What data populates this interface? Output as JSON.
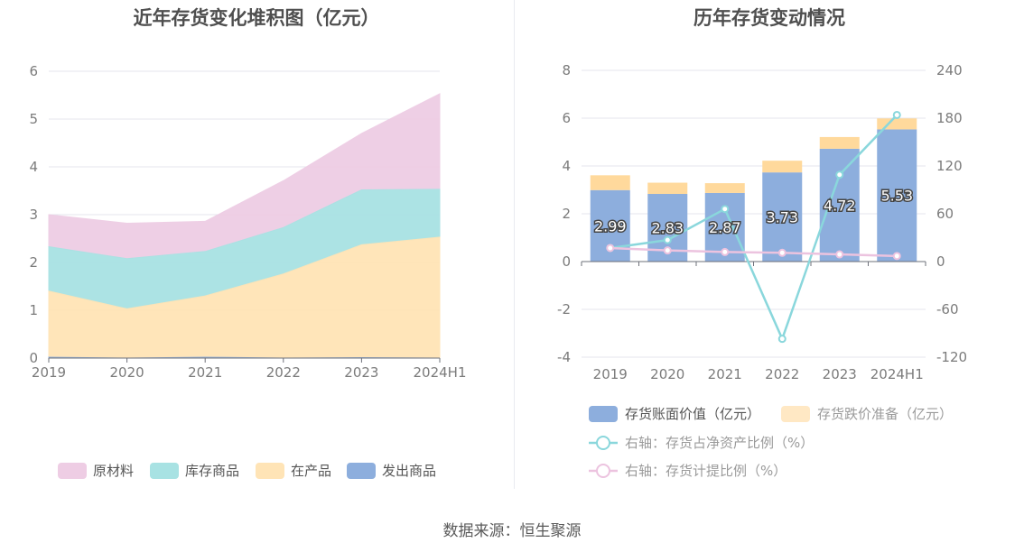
{
  "colors": {
    "raw": "#eecde4",
    "inventory": "#a8e2e3",
    "wip": "#ffe4b6",
    "shipped": "#8daedd",
    "book": "#8daedd",
    "impair": "#ffd99c",
    "netAsset": "#8ad7dc",
    "provision": "#ecc3df",
    "grid": "#e4e6ee",
    "axis": "#6e7079"
  },
  "source_text": "数据来源：恒生聚源",
  "chart_data": [
    {
      "type": "area",
      "title": "近年存货变化堆积图（亿元）",
      "categories": [
        "2019",
        "2020",
        "2021",
        "2022",
        "2023",
        "2024H1"
      ],
      "ylim": [
        0,
        6
      ],
      "yticks": [
        "0",
        "1",
        "2",
        "3",
        "4",
        "5",
        "6"
      ],
      "series": [
        {
          "name": "原材料",
          "color_key": "raw",
          "values": [
            0.67,
            0.74,
            0.63,
            0.98,
            1.18,
            2.0
          ]
        },
        {
          "name": "库存商品",
          "color_key": "inventory",
          "values": [
            0.93,
            1.05,
            0.93,
            0.97,
            1.15,
            1.0
          ]
        },
        {
          "name": "在产品",
          "color_key": "wip",
          "values": [
            1.38,
            1.03,
            1.28,
            1.76,
            2.36,
            2.53
          ]
        },
        {
          "name": "发出商品",
          "color_key": "shipped",
          "values": [
            0.02,
            0.0,
            0.02,
            0.0,
            0.01,
            0.0
          ]
        }
      ],
      "legend": [
        "原材料",
        "库存商品",
        "在产品",
        "发出商品"
      ]
    },
    {
      "type": "bar",
      "title": "历年存货变动情况",
      "categories": [
        "2019",
        "2020",
        "2021",
        "2022",
        "2023",
        "2024H1"
      ],
      "ylim": [
        -4,
        8
      ],
      "yticks": [
        "-4",
        "-2",
        "0",
        "2",
        "4",
        "6",
        "8"
      ],
      "y2lim": [
        -120,
        240
      ],
      "y2ticks": [
        "-120",
        "-60",
        "0",
        "60",
        "120",
        "180",
        "240"
      ],
      "bar_series": [
        {
          "name": "存货账面价值（亿元）",
          "color_key": "book",
          "values": [
            2.99,
            2.83,
            2.87,
            3.73,
            4.72,
            5.53
          ],
          "labels": [
            "2.99",
            "2.83",
            "2.87",
            "3.73",
            "4.72",
            "5.53"
          ]
        },
        {
          "name": "存货跌价准备（亿元）",
          "color_key": "impair",
          "values": [
            0.62,
            0.47,
            0.41,
            0.49,
            0.49,
            0.46
          ]
        }
      ],
      "line_series": [
        {
          "name": "右轴：存货占净资产比例（%）",
          "color_key": "netAsset",
          "values": [
            17,
            27,
            66,
            -97,
            109,
            184
          ]
        },
        {
          "name": "右轴：存货计提比例（%）",
          "color_key": "provision",
          "values": [
            17,
            14,
            12,
            11,
            9,
            7
          ]
        }
      ]
    }
  ]
}
